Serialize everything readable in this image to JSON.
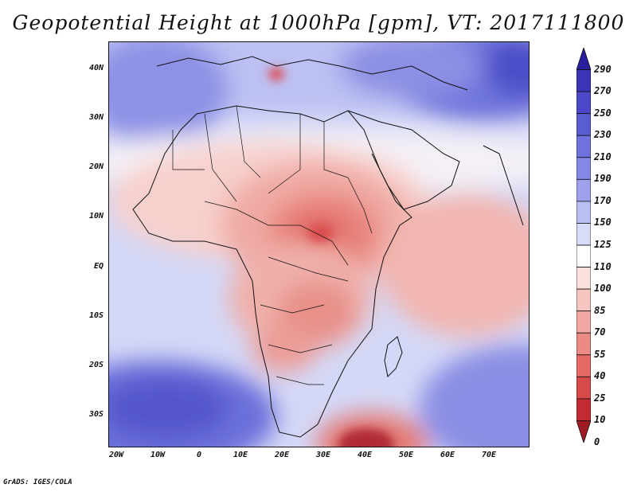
{
  "title": "Geopotential Height at 1000hPa [gpm], VT: 2017111800",
  "footer": "GrADS: IGES/COLA",
  "lat_labels": [
    "40N",
    "30N",
    "20N",
    "10N",
    "EQ",
    "10S",
    "20S",
    "30S"
  ],
  "lon_labels": [
    "20W",
    "10W",
    "0",
    "10E",
    "20E",
    "30E",
    "40E",
    "50E",
    "60E",
    "70E"
  ],
  "colorbar": {
    "levels": [
      "290",
      "270",
      "250",
      "230",
      "210",
      "190",
      "170",
      "150",
      "125",
      "110",
      "100",
      "85",
      "70",
      "55",
      "40",
      "25",
      "10",
      "0"
    ],
    "colors": [
      "#2a1f9e",
      "#3a34b8",
      "#4a48c8",
      "#5a5cd2",
      "#6f72dc",
      "#8488e4",
      "#9ea2ec",
      "#babef3",
      "#d8dcf8",
      "#ffffff",
      "#fce0dc",
      "#f8c6c0",
      "#f2a8a2",
      "#ec8a84",
      "#e46a66",
      "#d8494a",
      "#c42a32",
      "#a01a24"
    ]
  }
}
